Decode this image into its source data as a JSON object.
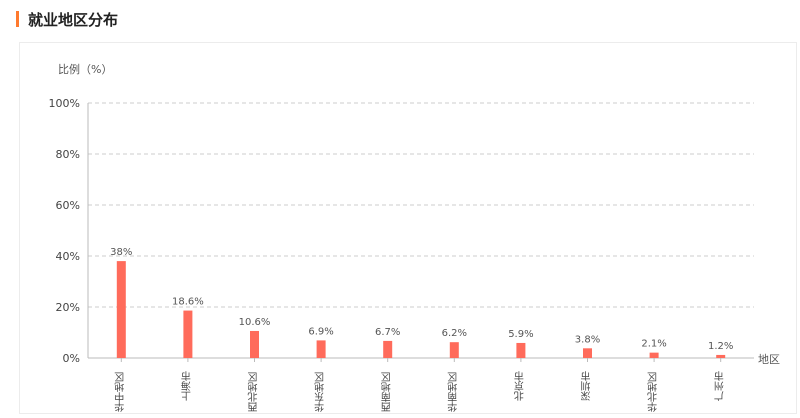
{
  "header": {
    "title": "就业地区分布"
  },
  "chart_data": {
    "type": "bar",
    "ylabel": "比例（%）",
    "xlabel": "地区",
    "ylim": [
      0,
      100
    ],
    "yticks": [
      "0%",
      "20%",
      "40%",
      "60%",
      "80%",
      "100%"
    ],
    "grid": true,
    "bar_color": "#ff6b5b",
    "categories": [
      "华中地区",
      "上海市",
      "西北地区",
      "华东地区",
      "西南地区",
      "华南地区",
      "北京市",
      "深圳市",
      "华北地区",
      "广州市"
    ],
    "values": [
      38,
      18.6,
      10.6,
      6.9,
      6.7,
      6.2,
      5.9,
      3.8,
      2.1,
      1.2
    ],
    "data_labels": [
      "38%",
      "18.6%",
      "10.6%",
      "6.9%",
      "6.7%",
      "6.2%",
      "5.9%",
      "3.8%",
      "2.1%",
      "1.2%"
    ]
  }
}
